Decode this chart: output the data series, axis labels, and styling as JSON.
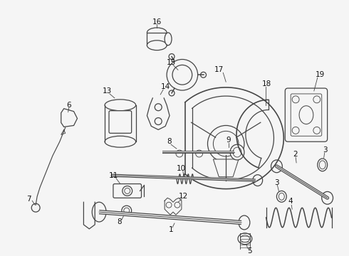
{
  "bg_color": "#f5f5f5",
  "line_color": "#444444",
  "label_color": "#111111",
  "fig_width": 4.9,
  "fig_height": 3.6,
  "dpi": 100,
  "lw": 0.9
}
